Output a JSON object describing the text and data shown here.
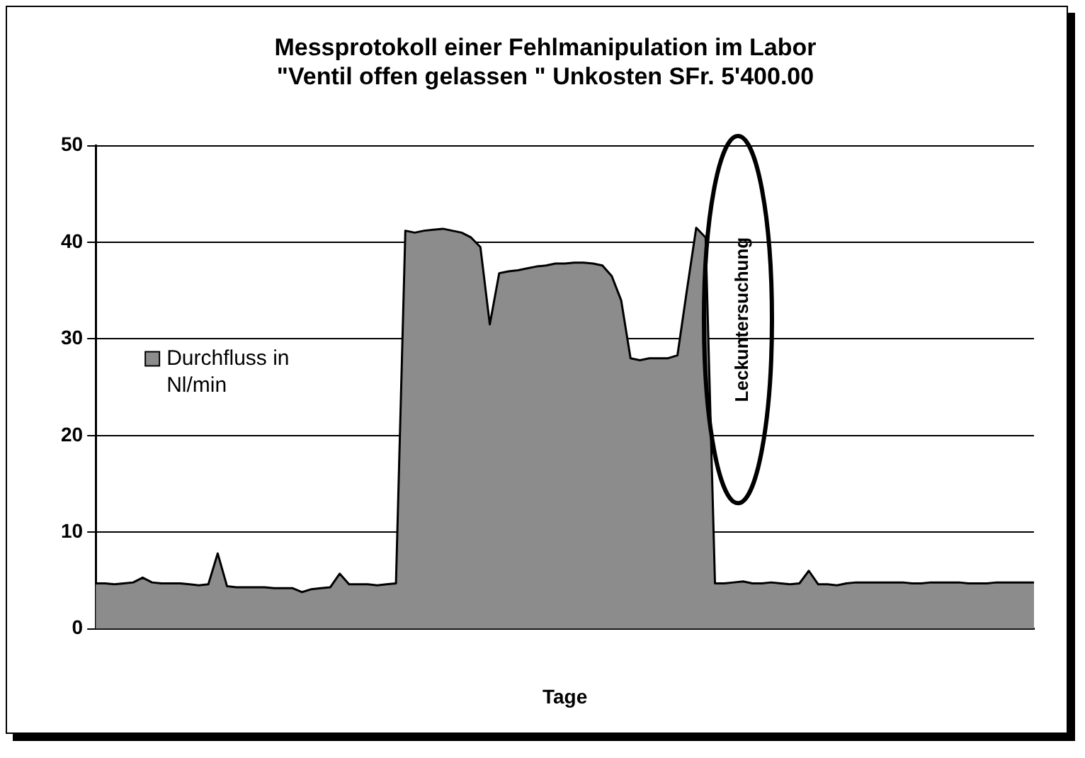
{
  "chart_data": {
    "type": "area",
    "title": [
      "Messprotokoll einer Fehlmanipulation im Labor",
      "\"Ventil offen gelassen \" Unkosten SFr. 5'400.00"
    ],
    "xlabel": "Tage",
    "categories": [
      null,
      null,
      null,
      null,
      null,
      null,
      null,
      null,
      null,
      null,
      null,
      null,
      null,
      null,
      null,
      null,
      null,
      null,
      null,
      null,
      null,
      null,
      null,
      null,
      null,
      null,
      null,
      null,
      null,
      null,
      null,
      null,
      null,
      null,
      null,
      null,
      null,
      null,
      null,
      null,
      null,
      null,
      null,
      null,
      null,
      null,
      null,
      null,
      null,
      null,
      null,
      null,
      null,
      null,
      null,
      null,
      null,
      null,
      null,
      null,
      null,
      null,
      null,
      null,
      null,
      null,
      null,
      null,
      null,
      null,
      null,
      null,
      null,
      null,
      null,
      null,
      null,
      null,
      null,
      null,
      null,
      null,
      null,
      null,
      null,
      null,
      null,
      null,
      null,
      null,
      null,
      null,
      null,
      null,
      null,
      null,
      null,
      null,
      null,
      null,
      null
    ],
    "series": [
      {
        "name": "Durchfluss in Nl/min",
        "color": "#8c8c8c",
        "values": [
          4.7,
          4.7,
          4.6,
          4.7,
          4.8,
          5.3,
          4.8,
          4.7,
          4.7,
          4.7,
          4.6,
          4.5,
          4.6,
          7.8,
          4.4,
          4.3,
          4.3,
          4.3,
          4.3,
          4.2,
          4.2,
          4.2,
          3.8,
          4.1,
          4.2,
          4.3,
          5.7,
          4.6,
          4.6,
          4.6,
          4.5,
          4.6,
          4.7,
          41.2,
          41.0,
          41.2,
          41.3,
          41.4,
          41.2,
          41.0,
          40.5,
          39.5,
          31.5,
          36.8,
          37.0,
          37.1,
          37.3,
          37.5,
          37.6,
          37.8,
          37.8,
          37.9,
          37.9,
          37.8,
          37.6,
          36.5,
          34.0,
          28.0,
          27.8,
          28.0,
          28.0,
          28.0,
          28.3,
          35,
          41.5,
          40.5,
          4.7,
          4.7,
          4.8,
          4.9,
          4.7,
          4.7,
          4.8,
          4.7,
          4.6,
          4.7,
          6.0,
          4.6,
          4.6,
          4.5,
          4.7,
          4.8,
          4.8,
          4.8,
          4.8,
          4.8,
          4.8,
          4.7,
          4.7,
          4.8,
          4.8,
          4.8,
          4.8,
          4.7,
          4.7,
          4.7,
          4.8,
          4.8,
          4.8,
          4.8,
          4.8
        ]
      }
    ],
    "ylim": [
      0,
      50
    ],
    "yticks": [
      0,
      10,
      20,
      30,
      40,
      50
    ],
    "grid": "y",
    "legend": "left",
    "marker": "none",
    "line_style": "solid",
    "annotations": [
      "Leckuntersuchung"
    ]
  }
}
